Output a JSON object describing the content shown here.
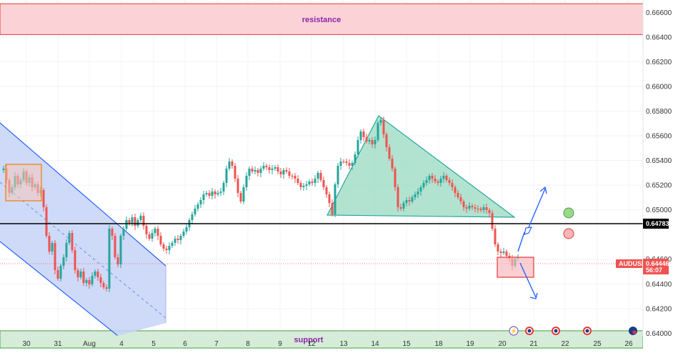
{
  "chart_data": {
    "type": "candlestick",
    "symbol": "AUDUSD",
    "current_price": "0.64446",
    "countdown": "56:07",
    "key_level": "0.64783",
    "resistance_label": "resistance",
    "support_label": "support",
    "resistance_zone": [
      0.6642,
      0.6667
    ],
    "support_zone": [
      0.6388,
      0.6402
    ],
    "ylim": [
      0.6384,
      0.667
    ],
    "y_ticks": [
      "0.66600",
      "0.66400",
      "0.66200",
      "0.66000",
      "0.65800",
      "0.65600",
      "0.65400",
      "0.65200",
      "0.65000",
      "0.64600",
      "0.64400",
      "0.64200",
      "0.64000"
    ],
    "x_ticks": [
      "30",
      "31",
      "Aug",
      "4",
      "5",
      "6",
      "7",
      "8",
      "9",
      "12",
      "13",
      "14",
      "15",
      "18",
      "19",
      "20",
      "21",
      "22",
      "25",
      "26"
    ],
    "grid": true,
    "colors": {
      "up": "#26a69a",
      "down": "#ef5350",
      "resistance_fill": "#fbd3d6",
      "resistance_border": "#e53935",
      "support_fill": "#d5ecd7",
      "support_border": "#43a047",
      "channel_fill": "#c5d4f7",
      "channel_line": "#2962ff",
      "triangle_fill": "#9fdcc6",
      "triangle_line": "#26a69a",
      "arrow": "#2962ff",
      "price_badge": "#ef5350",
      "level_badge": "#000000"
    }
  }
}
